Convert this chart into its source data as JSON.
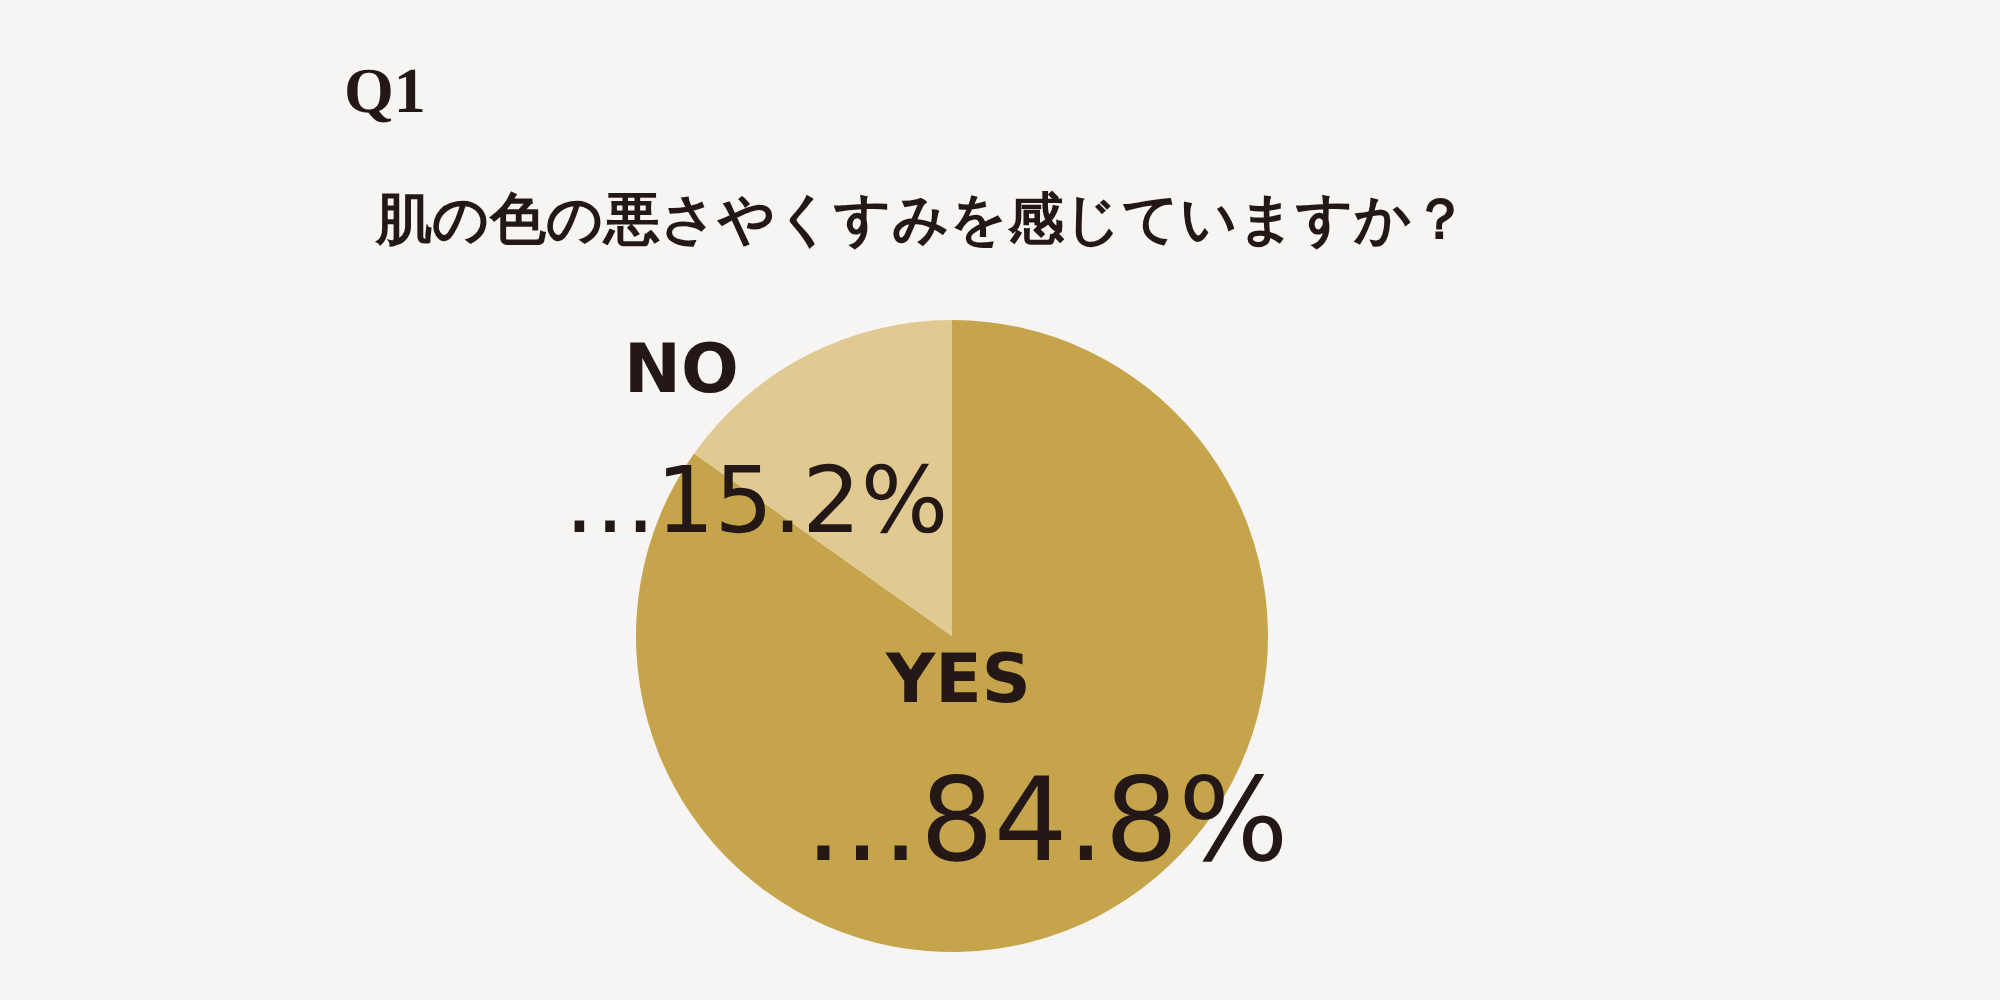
{
  "chart_data": {
    "type": "pie",
    "title": "Q1",
    "subtitle": "肌の色の悪さやくすみを感じていますか？",
    "categories": [
      "YES",
      "NO"
    ],
    "values": [
      84.8,
      15.2
    ],
    "colors": [
      "#c5a44b",
      "#e1ca92"
    ],
    "value_labels": [
      "…84.8%",
      "…15.2%"
    ],
    "legend": false
  }
}
